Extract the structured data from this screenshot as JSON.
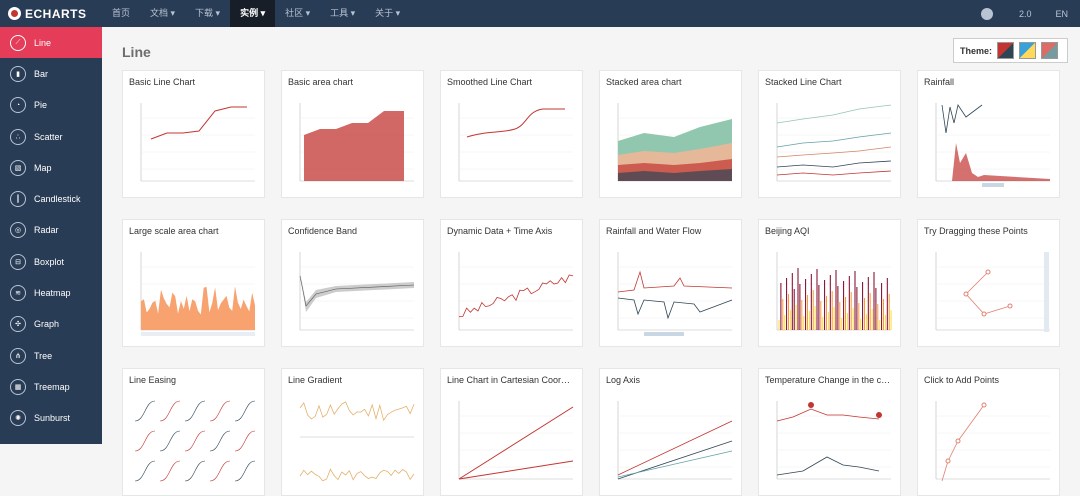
{
  "header": {
    "logo_text": "ECHARTS",
    "nav": [
      {
        "label": "首页",
        "active": false
      },
      {
        "label": "文档 ▾",
        "active": false
      },
      {
        "label": "下载 ▾",
        "active": false
      },
      {
        "label": "实例 ▾",
        "active": true
      },
      {
        "label": "社区 ▾",
        "active": false
      },
      {
        "label": "工具 ▾",
        "active": false
      },
      {
        "label": "关于 ▾",
        "active": false
      }
    ],
    "version": "2.0",
    "lang": "EN",
    "github_icon": "github-icon"
  },
  "sidebar": {
    "items": [
      {
        "label": "Line",
        "icon": "line-chart-icon",
        "glyph": "⟋",
        "active": true
      },
      {
        "label": "Bar",
        "icon": "bar-chart-icon",
        "glyph": "▮",
        "active": false
      },
      {
        "label": "Pie",
        "icon": "pie-chart-icon",
        "glyph": "◔",
        "active": false
      },
      {
        "label": "Scatter",
        "icon": "scatter-icon",
        "glyph": "∴",
        "active": false
      },
      {
        "label": "Map",
        "icon": "map-icon",
        "glyph": "▧",
        "active": false
      },
      {
        "label": "Candlestick",
        "icon": "candlestick-icon",
        "glyph": "┃",
        "active": false
      },
      {
        "label": "Radar",
        "icon": "radar-icon",
        "glyph": "◎",
        "active": false
      },
      {
        "label": "Boxplot",
        "icon": "boxplot-icon",
        "glyph": "⊟",
        "active": false
      },
      {
        "label": "Heatmap",
        "icon": "heatmap-icon",
        "glyph": "≋",
        "active": false
      },
      {
        "label": "Graph",
        "icon": "graph-icon",
        "glyph": "✣",
        "active": false
      },
      {
        "label": "Tree",
        "icon": "tree-icon",
        "glyph": "⋔",
        "active": false
      },
      {
        "label": "Treemap",
        "icon": "treemap-icon",
        "glyph": "▦",
        "active": false
      },
      {
        "label": "Sunburst",
        "icon": "sunburst-icon",
        "glyph": "✺",
        "active": false
      }
    ]
  },
  "main": {
    "title": "Line",
    "theme_label": "Theme:",
    "theme_swatches": [
      {
        "name": "theme-default",
        "a": "#c23531",
        "b": "#2f4554"
      },
      {
        "name": "theme-light",
        "a": "#37a2da",
        "b": "#ffd85c"
      },
      {
        "name": "theme-dark",
        "a": "#dd6b66",
        "b": "#759aa0"
      }
    ],
    "cards": [
      {
        "title": "Basic Line Chart",
        "kind": "line"
      },
      {
        "title": "Basic area chart",
        "kind": "area"
      },
      {
        "title": "Smoothed Line Chart",
        "kind": "smooth"
      },
      {
        "title": "Stacked area chart",
        "kind": "stacked-area"
      },
      {
        "title": "Stacked Line Chart",
        "kind": "stacked-line"
      },
      {
        "title": "Rainfall",
        "kind": "rainfall"
      },
      {
        "title": "Large scale area chart",
        "kind": "large-area"
      },
      {
        "title": "Confidence Band",
        "kind": "confidence"
      },
      {
        "title": "Dynamic Data + Time Axis",
        "kind": "dynamic"
      },
      {
        "title": "Rainfall and Water Flow",
        "kind": "waterflow"
      },
      {
        "title": "Beijing AQI",
        "kind": "aqi"
      },
      {
        "title": "Try Dragging these Points",
        "kind": "drag"
      },
      {
        "title": "Line Easing",
        "kind": "easing"
      },
      {
        "title": "Line Gradient",
        "kind": "gradient"
      },
      {
        "title": "Line Chart in Cartesian Coor…",
        "kind": "cartesian"
      },
      {
        "title": "Log Axis",
        "kind": "log"
      },
      {
        "title": "Temperature Change in the c…",
        "kind": "temperature"
      },
      {
        "title": "Click to Add Points",
        "kind": "click"
      }
    ]
  },
  "colors": {
    "header_bg": "#293c55",
    "active_nav_bg": "#171e27",
    "sidebar_active": "#e43c59",
    "series_red": "#c23531"
  }
}
